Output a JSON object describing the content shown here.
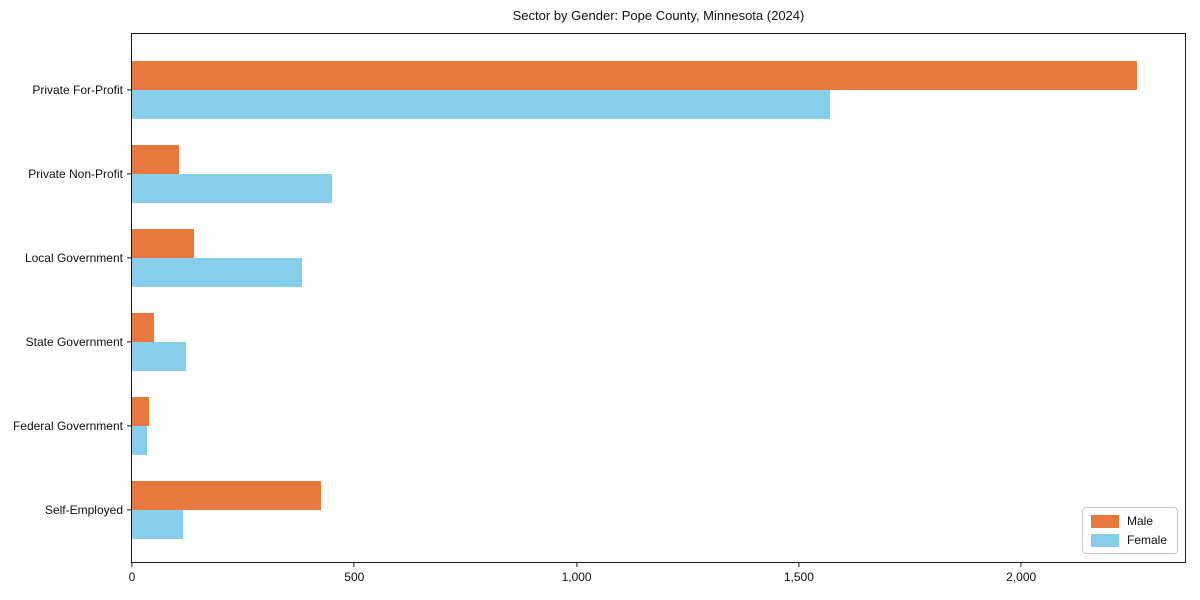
{
  "chart_data": {
    "type": "bar",
    "orientation": "horizontal",
    "title": "Sector by Gender: Pope County, Minnesota (2024)",
    "categories": [
      "Private For-Profit",
      "Private Non-Profit",
      "Local Government",
      "State Government",
      "Federal Government",
      "Self-Employed"
    ],
    "series": [
      {
        "name": "Male",
        "color": "#e8793c",
        "values": [
          2260,
          105,
          140,
          50,
          38,
          425
        ]
      },
      {
        "name": "Female",
        "color": "#87ceeb",
        "values": [
          1570,
          450,
          382,
          122,
          33,
          115
        ]
      }
    ],
    "xlabel": "",
    "ylabel": "",
    "xlim": [
      0,
      2373
    ],
    "xticks": {
      "values": [
        0,
        500,
        1000,
        1500,
        2000
      ],
      "labels": [
        "0",
        "500",
        "1,000",
        "1,500",
        "2,000"
      ]
    },
    "grid": false,
    "legend_position": "lower right"
  }
}
